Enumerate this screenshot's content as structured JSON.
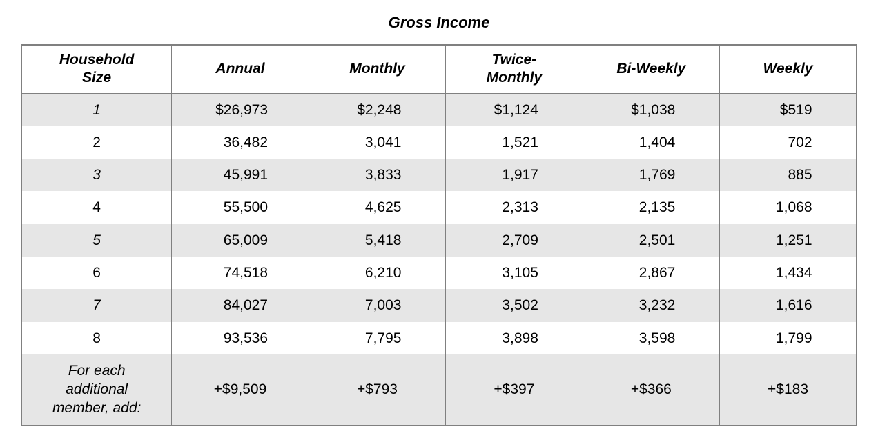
{
  "title": "Gross Income",
  "table": {
    "columns": [
      "Household\nSize",
      "Annual",
      "Monthly",
      "Twice-\nMonthly",
      "Bi-Weekly",
      "Weekly"
    ],
    "column_widths_pct": [
      18,
      16.4,
      16.4,
      16.4,
      16.4,
      16.4
    ],
    "header_fontsize": 21,
    "header_fontweight": "bold",
    "header_fontstyle": "italic",
    "cell_fontsize": 21,
    "border_color": "#808080",
    "stripe_color": "#e6e6e6",
    "background_color": "#ffffff",
    "text_color": "#000000",
    "rows": [
      {
        "label": "1",
        "label_italic": true,
        "annual": "$26,973",
        "monthly": "$2,248",
        "twice_monthly": "$1,124",
        "biweekly": "$1,038",
        "weekly": "$519"
      },
      {
        "label": "2",
        "label_italic": false,
        "annual": "36,482",
        "monthly": "3,041",
        "twice_monthly": "1,521",
        "biweekly": "1,404",
        "weekly": "702"
      },
      {
        "label": "3",
        "label_italic": true,
        "annual": "45,991",
        "monthly": "3,833",
        "twice_monthly": "1,917",
        "biweekly": "1,769",
        "weekly": "885"
      },
      {
        "label": "4",
        "label_italic": false,
        "annual": "55,500",
        "monthly": "4,625",
        "twice_monthly": "2,313",
        "biweekly": "2,135",
        "weekly": "1,068"
      },
      {
        "label": "5",
        "label_italic": true,
        "annual": "65,009",
        "monthly": "5,418",
        "twice_monthly": "2,709",
        "biweekly": "2,501",
        "weekly": "1,251"
      },
      {
        "label": "6",
        "label_italic": false,
        "annual": "74,518",
        "monthly": "6,210",
        "twice_monthly": "3,105",
        "biweekly": "2,867",
        "weekly": "1,434"
      },
      {
        "label": "7",
        "label_italic": true,
        "annual": "84,027",
        "monthly": "7,003",
        "twice_monthly": "3,502",
        "biweekly": "3,232",
        "weekly": "1,616"
      },
      {
        "label": "8",
        "label_italic": false,
        "annual": "93,536",
        "monthly": "7,795",
        "twice_monthly": "3,898",
        "biweekly": "3,598",
        "weekly": "1,799"
      }
    ],
    "additional_row": {
      "label": "For each\nadditional\nmember, add:",
      "label_italic": true,
      "annual": "+$9,509",
      "monthly": "+$793",
      "twice_monthly": "+$397",
      "biweekly": "+$366",
      "weekly": "+$183"
    }
  }
}
